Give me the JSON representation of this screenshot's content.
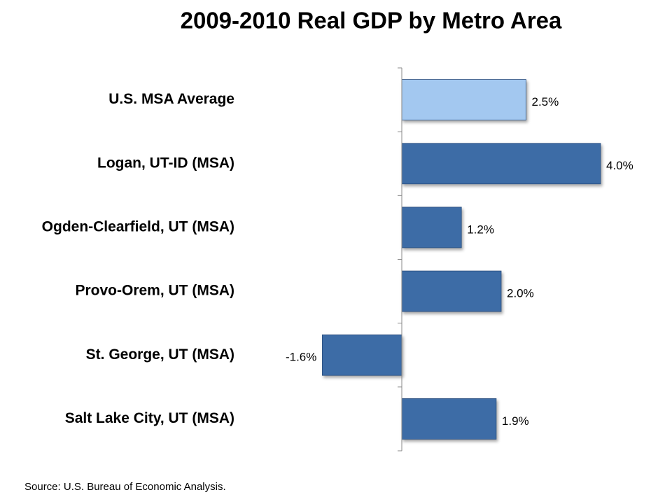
{
  "chart_data": {
    "type": "bar",
    "title": "2009-2010 Real GDP by Metro Area",
    "source": "Source: U.S. Bureau of Economic Analysis.",
    "categories": [
      "U.S. MSA Average",
      "Logan, UT-ID (MSA)",
      "Ogden-Clearfield, UT (MSA)",
      "Provo-Orem, UT (MSA)",
      "St. George, UT (MSA)",
      "Salt Lake City, UT (MSA)"
    ],
    "values": [
      2.5,
      4.0,
      1.2,
      2.0,
      -1.6,
      1.9
    ],
    "value_labels": [
      "2.5%",
      "4.0%",
      "1.2%",
      "2.0%",
      "-1.6%",
      "1.9%"
    ],
    "colors": [
      "#a3c8f0",
      "#3e6ca6",
      "#3e6ca6",
      "#3e6ca6",
      "#3e6ca6",
      "#3e6ca6"
    ],
    "xlim": [
      -2,
      5
    ],
    "grid": false
  }
}
